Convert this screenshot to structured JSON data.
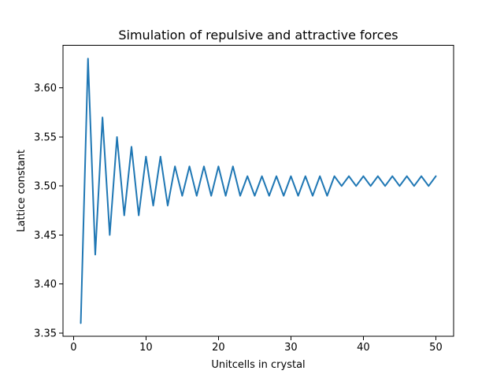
{
  "chart_data": {
    "type": "line",
    "title": "Simulation of repulsive and attractive forces",
    "xlabel": "Unitcells in crystal",
    "ylabel": "Lattice constant",
    "xlim": [
      -1.45,
      52.45
    ],
    "ylim": [
      3.3465,
      3.6435
    ],
    "x_ticks": [
      0,
      10,
      20,
      30,
      40,
      50
    ],
    "x_tick_labels": [
      "0",
      "10",
      "20",
      "30",
      "40",
      "50"
    ],
    "y_ticks": [
      3.35,
      3.4,
      3.45,
      3.5,
      3.55,
      3.6
    ],
    "y_tick_labels": [
      "3.35",
      "3.40",
      "3.45",
      "3.50",
      "3.55",
      "3.60"
    ],
    "grid": false,
    "legend": "none",
    "series": [
      {
        "color": "#1f77b4",
        "x": [
          1,
          2,
          3,
          4,
          5,
          6,
          7,
          8,
          9,
          10,
          11,
          12,
          13,
          14,
          15,
          16,
          17,
          18,
          19,
          20,
          21,
          22,
          23,
          24,
          25,
          26,
          27,
          28,
          29,
          30,
          31,
          32,
          33,
          34,
          35,
          36,
          37,
          38,
          39,
          40,
          41,
          42,
          43,
          44,
          45,
          46,
          47,
          48,
          49,
          50
        ],
        "y": [
          3.36,
          3.63,
          3.43,
          3.57,
          3.45,
          3.55,
          3.47,
          3.54,
          3.47,
          3.53,
          3.48,
          3.53,
          3.48,
          3.52,
          3.49,
          3.52,
          3.49,
          3.52,
          3.49,
          3.52,
          3.49,
          3.52,
          3.49,
          3.51,
          3.49,
          3.51,
          3.49,
          3.51,
          3.49,
          3.51,
          3.49,
          3.51,
          3.49,
          3.51,
          3.49,
          3.51,
          3.5,
          3.51,
          3.5,
          3.51,
          3.5,
          3.51,
          3.5,
          3.51,
          3.5,
          3.51,
          3.5,
          3.51,
          3.5,
          3.51
        ]
      }
    ]
  }
}
